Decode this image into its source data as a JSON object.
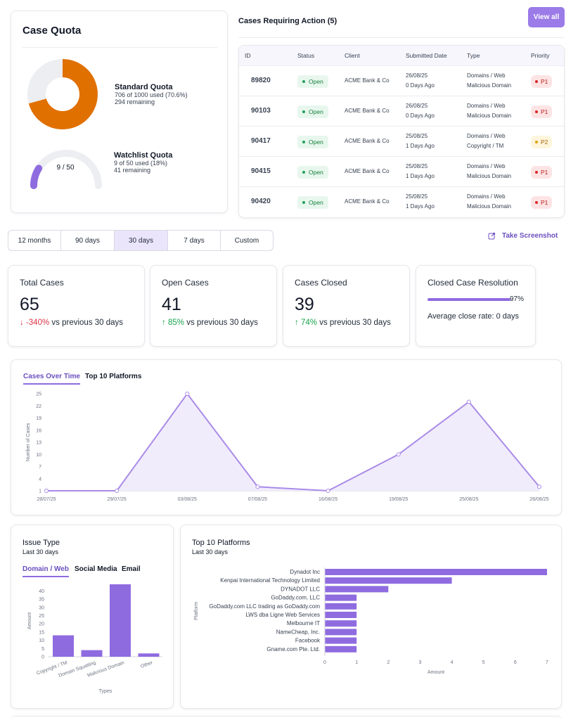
{
  "quota": {
    "title": "Case Quota",
    "standard": {
      "title": "Standard Quota",
      "used_text": "706 of 1000 used (70.6%)",
      "remaining_text": "294 remaining",
      "fraction": 0.706
    },
    "watchlist": {
      "title": "Watchlist Quota",
      "used_text": "9 of 50 used (18%)",
      "remaining_text": "41 remaining",
      "center_label": "9 / 50",
      "fraction": 0.18
    }
  },
  "action": {
    "title": "Cases Requiring Action (5)",
    "view_all": "View all",
    "columns": [
      "ID",
      "Status",
      "Client",
      "Submitted Date",
      "Type",
      "Priority"
    ],
    "rows": [
      {
        "id": "89820",
        "status": "Open",
        "client": "ACME Bank & Co",
        "date": "26/08/25",
        "ago": "0 Days Ago",
        "type1": "Domains / Web",
        "type2": "Malicious Domain",
        "priority": "P1"
      },
      {
        "id": "90103",
        "status": "Open",
        "client": "ACME Bank & Co",
        "date": "26/08/25",
        "ago": "0 Days Ago",
        "type1": "Domains / Web",
        "type2": "Malicious Domain",
        "priority": "P1"
      },
      {
        "id": "90417",
        "status": "Open",
        "client": "ACME Bank & Co",
        "date": "25/08/25",
        "ago": "1 Days Ago",
        "type1": "Domains / Web",
        "type2": "Copyright / TM",
        "priority": "P2"
      },
      {
        "id": "90415",
        "status": "Open",
        "client": "ACME Bank & Co",
        "date": "25/08/25",
        "ago": "1 Days Ago",
        "type1": "Domains / Web",
        "type2": "Malicious Domain",
        "priority": "P1"
      },
      {
        "id": "90420",
        "status": "Open",
        "client": "ACME Bank & Co",
        "date": "25/08/25",
        "ago": "1 Days Ago",
        "type1": "Domains / Web",
        "type2": "Malicious Domain",
        "priority": "P1"
      }
    ]
  },
  "ranges": {
    "items": [
      "12 months",
      "90 days",
      "30 days",
      "7 days",
      "Custom"
    ],
    "selected": "30 days"
  },
  "screenshot_label": "Take Screenshot",
  "stats": {
    "total": {
      "label": "Total Cases",
      "value": "65",
      "delta": "-340%",
      "suffix": "vs previous 30 days",
      "arrow": "↓"
    },
    "open": {
      "label": "Open Cases",
      "value": "41",
      "delta": "85%",
      "suffix": "vs previous 30 days",
      "arrow": "↑"
    },
    "closed": {
      "label": "Cases Closed",
      "value": "39",
      "delta": "74%",
      "suffix": "vs previous 30 days",
      "arrow": "↑"
    },
    "resolution": {
      "label": "Closed Case Resolution",
      "percent_text": "97%",
      "fraction": 0.97,
      "avg_text": "Average close rate: 0 days"
    }
  },
  "timeline": {
    "tabs": [
      "Cases Over Time",
      "Top 10 Platforms"
    ],
    "active_tab": "Cases Over Time"
  },
  "issue": {
    "title": "Issue Type",
    "subtitle": "Last 30 days",
    "tabs": [
      "Domain / Web",
      "Social Media",
      "Email"
    ],
    "active_tab": "Domain / Web"
  },
  "platforms": {
    "title": "Top 10 Platforms",
    "subtitle": "Last 30 days"
  },
  "colors": {
    "accent": "#9b7be8",
    "bar": "#8f6be0",
    "line": "#a98be8",
    "donut": "#e07000",
    "track": "#eceef1"
  },
  "chart_data": [
    {
      "type": "area",
      "title": "Cases Over Time",
      "xlabel": "",
      "ylabel": "Number of Cases",
      "x": [
        "28/07/25",
        "29/07/25",
        "03/08/25",
        "07/08/25",
        "16/08/25",
        "19/08/25",
        "25/08/25",
        "26/08/25"
      ],
      "values": [
        1,
        1,
        25,
        2,
        1,
        10,
        23,
        2
      ],
      "yticks": [
        1,
        4,
        7,
        10,
        13,
        16,
        19,
        22,
        25
      ],
      "ylim": [
        1,
        25
      ]
    },
    {
      "type": "bar",
      "title": "Issue Type",
      "xlabel": "Types",
      "ylabel": "Amount",
      "categories": [
        "Copyright / TM",
        "Domain Squatting",
        "Malicious Domain",
        "Other"
      ],
      "values": [
        13,
        4,
        44,
        2
      ],
      "yticks": [
        0,
        5,
        10,
        15,
        20,
        25,
        30,
        35,
        40
      ],
      "ylim": [
        0,
        44
      ]
    },
    {
      "type": "bar",
      "orientation": "horizontal",
      "title": "Top 10 Platforms",
      "xlabel": "Amount",
      "ylabel": "Platform",
      "categories": [
        "Dynadot Inc",
        "Kenpai International Technology Limited",
        "DYNADOT LLC",
        "GoDaddy.com, LLC",
        "GoDaddy.com LLC trading as GoDaddy.com",
        "LWS dba Ligne Web Services",
        "Melbourne IT",
        "NameCheap, Inc.",
        "Facebook",
        "Gname.com Pte. Ltd."
      ],
      "values": [
        7,
        4,
        2,
        1,
        1,
        1,
        1,
        1,
        1,
        1
      ],
      "xticks": [
        0,
        1,
        2,
        3,
        4,
        5,
        6,
        7
      ],
      "xlim": [
        0,
        7
      ]
    }
  ]
}
